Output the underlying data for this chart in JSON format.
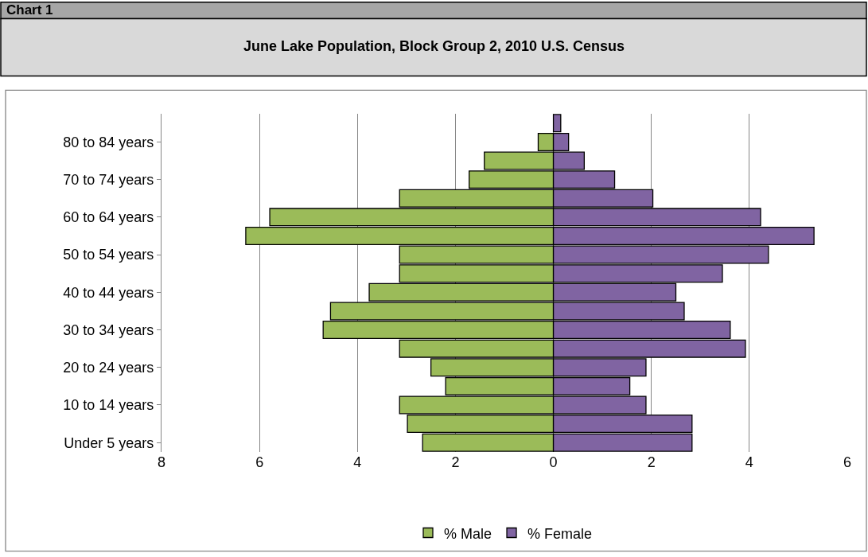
{
  "chart_data": {
    "type": "bar",
    "orientation": "horizontal",
    "title": "June Lake Population, Block Group 2, 2010 U.S. Census",
    "annotations": [
      "Chart 1"
    ],
    "categories": [
      null,
      "80 to 84 years",
      null,
      "70 to 74 years",
      null,
      "60 to 64 years",
      null,
      "50 to 54 years",
      null,
      "40 to 44 years",
      null,
      "30 to 34 years",
      null,
      "20 to 24 years",
      null,
      "10 to 14 years",
      null,
      "Under 5 years"
    ],
    "series": [
      {
        "name": "% Male",
        "color": "#9bbb59",
        "values": [
          null,
          -0.31,
          -1.41,
          -1.72,
          -3.14,
          -5.79,
          -6.28,
          -3.14,
          -3.14,
          -3.76,
          -4.55,
          -4.7,
          -3.14,
          -2.5,
          -2.2,
          -3.14,
          -2.98,
          -2.67
        ]
      },
      {
        "name": "% Female",
        "color": "#8064a2",
        "values": [
          0.15,
          0.31,
          0.63,
          1.25,
          2.03,
          4.23,
          5.32,
          4.39,
          3.45,
          2.5,
          2.67,
          3.61,
          3.92,
          1.89,
          1.56,
          1.89,
          2.83,
          2.83
        ]
      }
    ],
    "stacked": true,
    "xlim": [
      -8,
      6
    ],
    "xticks": [
      {
        "value": -8,
        "label": "8"
      },
      {
        "value": -6,
        "label": "6"
      },
      {
        "value": -4,
        "label": "4"
      },
      {
        "value": -2,
        "label": "2"
      },
      0,
      2,
      4,
      6
    ],
    "grid": "x",
    "legend": "bottom"
  }
}
